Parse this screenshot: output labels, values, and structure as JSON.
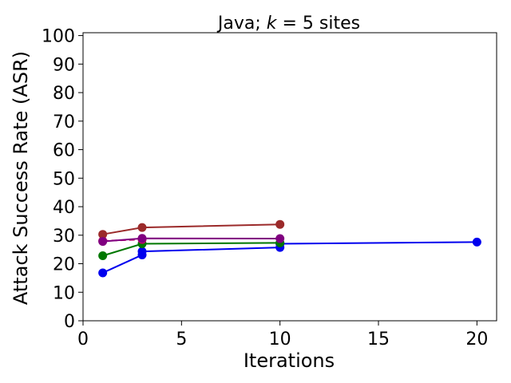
{
  "chart_data": {
    "type": "line",
    "title_prefix": "Java; ",
    "title_var": "k",
    "title_suffix": " = 5 sites",
    "xlabel": "Iterations",
    "ylabel": "Attack Success Rate (ASR)",
    "xlim": [
      0,
      21
    ],
    "ylim": [
      0,
      101
    ],
    "xticks": [
      0,
      5,
      10,
      15,
      20
    ],
    "yticks": [
      0,
      10,
      20,
      30,
      40,
      50,
      60,
      70,
      80,
      90,
      100
    ],
    "grid": false,
    "series": [
      {
        "color": "#0000ee",
        "dashed": false,
        "x": [
          1,
          3,
          3,
          10,
          10,
          20
        ],
        "y": [
          16.8,
          23.1,
          24.3,
          25.7,
          27.0,
          27.6
        ]
      },
      {
        "color": "#007700",
        "dashed": false,
        "x": [
          1,
          3,
          10
        ],
        "y": [
          22.8,
          27.0,
          27.3
        ]
      },
      {
        "color": "#cc0066",
        "dashed": true,
        "x": [
          1,
          3
        ],
        "y": [
          28.0,
          28.5
        ]
      },
      {
        "color": "#9b2a2a",
        "dashed": false,
        "x": [
          1,
          3,
          10
        ],
        "y": [
          30.3,
          32.7,
          33.8
        ]
      },
      {
        "color": "#800080",
        "dashed": false,
        "x": [
          1,
          3,
          10
        ],
        "y": [
          27.8,
          28.9,
          28.8
        ]
      }
    ]
  }
}
